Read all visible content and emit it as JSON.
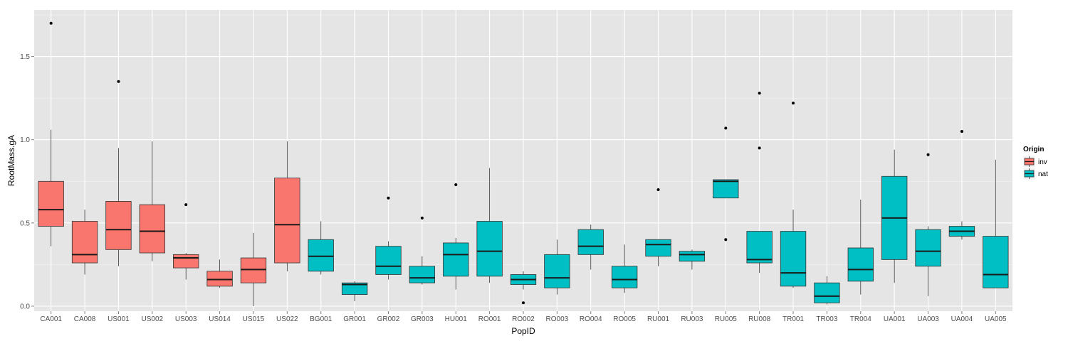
{
  "chart_data": {
    "type": "boxplot",
    "xlabel": "PopID",
    "ylabel": "RootMass.gA",
    "ylim": [
      -0.03,
      1.78
    ],
    "yticks": [
      "0.0",
      "0.5",
      "1.0",
      "1.5"
    ],
    "grid": true,
    "legend": {
      "title": "Origin",
      "position": "right",
      "entries": [
        {
          "name": "inv",
          "color": "#F8766D"
        },
        {
          "name": "nat",
          "color": "#00BFC4"
        }
      ]
    },
    "categories": [
      "CA001",
      "CA008",
      "US001",
      "US002",
      "US003",
      "US014",
      "US015",
      "US022",
      "BG001",
      "GR001",
      "GR002",
      "GR003",
      "HU001",
      "RO001",
      "RO002",
      "RO003",
      "RO004",
      "RO005",
      "RU001",
      "RU003",
      "RU005",
      "RU008",
      "TR001",
      "TR003",
      "TR004",
      "UA001",
      "UA003",
      "UA004",
      "UA005"
    ],
    "boxes": [
      {
        "id": "CA001",
        "origin": "inv",
        "lower": 0.36,
        "q1": 0.48,
        "median": 0.58,
        "q3": 0.75,
        "upper": 1.06,
        "outliers": [
          1.7
        ]
      },
      {
        "id": "CA008",
        "origin": "inv",
        "lower": 0.19,
        "q1": 0.26,
        "median": 0.31,
        "q3": 0.51,
        "upper": 0.58,
        "outliers": []
      },
      {
        "id": "US001",
        "origin": "inv",
        "lower": 0.24,
        "q1": 0.34,
        "median": 0.46,
        "q3": 0.63,
        "upper": 0.95,
        "outliers": [
          1.35
        ]
      },
      {
        "id": "US002",
        "origin": "inv",
        "lower": 0.27,
        "q1": 0.32,
        "median": 0.45,
        "q3": 0.61,
        "upper": 0.99,
        "outliers": []
      },
      {
        "id": "US003",
        "origin": "inv",
        "lower": 0.16,
        "q1": 0.23,
        "median": 0.29,
        "q3": 0.31,
        "upper": 0.32,
        "outliers": [
          0.61
        ]
      },
      {
        "id": "US014",
        "origin": "inv",
        "lower": 0.11,
        "q1": 0.12,
        "median": 0.16,
        "q3": 0.21,
        "upper": 0.28,
        "outliers": []
      },
      {
        "id": "US015",
        "origin": "inv",
        "lower": 0.0,
        "q1": 0.14,
        "median": 0.22,
        "q3": 0.29,
        "upper": 0.44,
        "outliers": []
      },
      {
        "id": "US022",
        "origin": "inv",
        "lower": 0.21,
        "q1": 0.26,
        "median": 0.49,
        "q3": 0.77,
        "upper": 0.99,
        "outliers": []
      },
      {
        "id": "BG001",
        "origin": "nat",
        "lower": 0.19,
        "q1": 0.21,
        "median": 0.3,
        "q3": 0.4,
        "upper": 0.51,
        "outliers": []
      },
      {
        "id": "GR001",
        "origin": "nat",
        "lower": 0.03,
        "q1": 0.07,
        "median": 0.13,
        "q3": 0.14,
        "upper": 0.15,
        "outliers": []
      },
      {
        "id": "GR002",
        "origin": "nat",
        "lower": 0.16,
        "q1": 0.19,
        "median": 0.24,
        "q3": 0.36,
        "upper": 0.39,
        "outliers": [
          0.65
        ]
      },
      {
        "id": "GR003",
        "origin": "nat",
        "lower": 0.13,
        "q1": 0.14,
        "median": 0.17,
        "q3": 0.24,
        "upper": 0.3,
        "outliers": [
          0.53
        ]
      },
      {
        "id": "HU001",
        "origin": "nat",
        "lower": 0.1,
        "q1": 0.18,
        "median": 0.31,
        "q3": 0.38,
        "upper": 0.41,
        "outliers": [
          0.73
        ]
      },
      {
        "id": "RO001",
        "origin": "nat",
        "lower": 0.14,
        "q1": 0.18,
        "median": 0.33,
        "q3": 0.51,
        "upper": 0.83,
        "outliers": []
      },
      {
        "id": "RO002",
        "origin": "nat",
        "lower": 0.1,
        "q1": 0.13,
        "median": 0.16,
        "q3": 0.19,
        "upper": 0.21,
        "outliers": [
          0.02
        ]
      },
      {
        "id": "RO003",
        "origin": "nat",
        "lower": 0.07,
        "q1": 0.11,
        "median": 0.17,
        "q3": 0.31,
        "upper": 0.4,
        "outliers": []
      },
      {
        "id": "RO004",
        "origin": "nat",
        "lower": 0.22,
        "q1": 0.31,
        "median": 0.36,
        "q3": 0.46,
        "upper": 0.49,
        "outliers": []
      },
      {
        "id": "RO005",
        "origin": "nat",
        "lower": 0.08,
        "q1": 0.11,
        "median": 0.16,
        "q3": 0.24,
        "upper": 0.37,
        "outliers": []
      },
      {
        "id": "RU001",
        "origin": "nat",
        "lower": 0.24,
        "q1": 0.3,
        "median": 0.37,
        "q3": 0.4,
        "upper": 0.4,
        "outliers": [
          0.7
        ]
      },
      {
        "id": "RU003",
        "origin": "nat",
        "lower": 0.22,
        "q1": 0.27,
        "median": 0.31,
        "q3": 0.33,
        "upper": 0.34,
        "outliers": []
      },
      {
        "id": "RU005",
        "origin": "nat",
        "lower": 0.65,
        "q1": 0.65,
        "median": 0.75,
        "q3": 0.76,
        "upper": 0.76,
        "outliers": [
          1.07,
          0.4
        ]
      },
      {
        "id": "RU008",
        "origin": "nat",
        "lower": 0.2,
        "q1": 0.26,
        "median": 0.28,
        "q3": 0.45,
        "upper": 0.45,
        "outliers": [
          1.28,
          0.95
        ]
      },
      {
        "id": "TR001",
        "origin": "nat",
        "lower": 0.11,
        "q1": 0.12,
        "median": 0.2,
        "q3": 0.45,
        "upper": 0.58,
        "outliers": [
          1.22
        ]
      },
      {
        "id": "TR003",
        "origin": "nat",
        "lower": 0.01,
        "q1": 0.02,
        "median": 0.06,
        "q3": 0.14,
        "upper": 0.18,
        "outliers": []
      },
      {
        "id": "TR004",
        "origin": "nat",
        "lower": 0.07,
        "q1": 0.15,
        "median": 0.22,
        "q3": 0.35,
        "upper": 0.64,
        "outliers": []
      },
      {
        "id": "UA001",
        "origin": "nat",
        "lower": 0.14,
        "q1": 0.28,
        "median": 0.53,
        "q3": 0.78,
        "upper": 0.94,
        "outliers": []
      },
      {
        "id": "UA003",
        "origin": "nat",
        "lower": 0.06,
        "q1": 0.24,
        "median": 0.33,
        "q3": 0.46,
        "upper": 0.48,
        "outliers": [
          0.91
        ]
      },
      {
        "id": "UA004",
        "origin": "nat",
        "lower": 0.4,
        "q1": 0.42,
        "median": 0.45,
        "q3": 0.48,
        "upper": 0.51,
        "outliers": [
          1.05
        ]
      },
      {
        "id": "UA005",
        "origin": "nat",
        "lower": 0.11,
        "q1": 0.11,
        "median": 0.19,
        "q3": 0.42,
        "upper": 0.88,
        "outliers": []
      }
    ]
  }
}
